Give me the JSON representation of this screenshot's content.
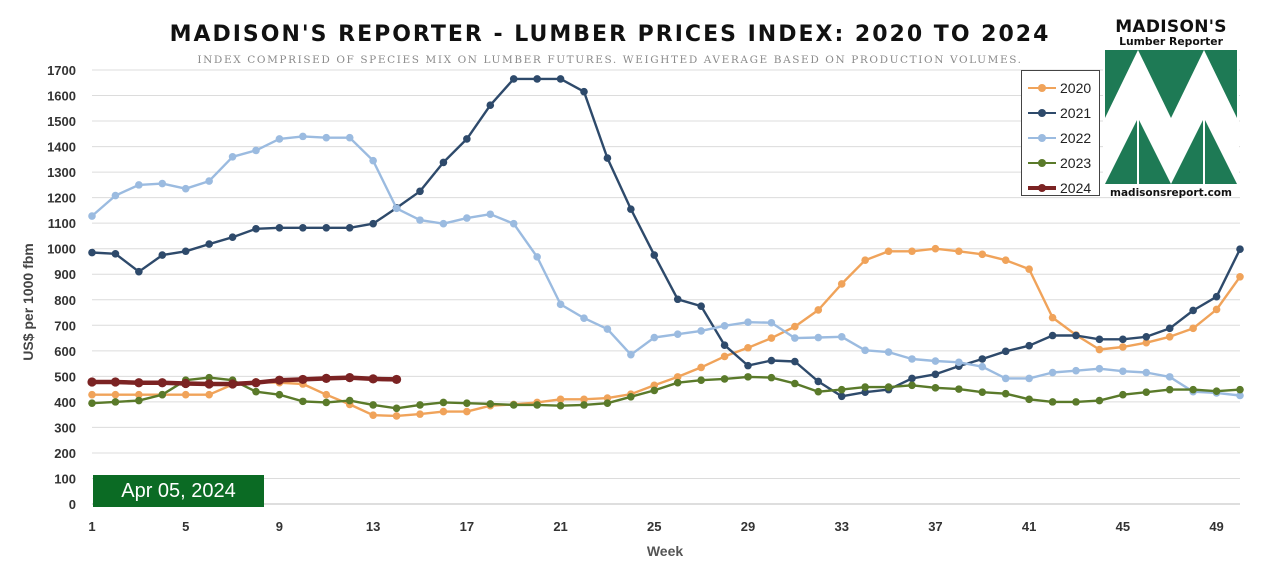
{
  "title": "MADISON'S REPORTER - LUMBER PRICES INDEX: 2020 TO 2024",
  "subtitle": "INDEX COMPRISED OF SPECIES MIX ON LUMBER FUTURES. WEIGHTED AVERAGE BASED ON PRODUCTION VOLUMES.",
  "date_badge": "Apr 05, 2024",
  "logo": {
    "name": "MADISON'S",
    "tagline": "Lumber Reporter",
    "url": "madisonsreport.com",
    "color": "#1e7a55"
  },
  "chart_data": {
    "type": "line",
    "title": "MADISON'S REPORTER - LUMBER PRICES INDEX: 2020 TO 2024",
    "subtitle": "INDEX COMPRISED OF SPECIES MIX ON LUMBER FUTURES. WEIGHTED AVERAGE BASED ON PRODUCTION VOLUMES.",
    "xlabel": "Week",
    "ylabel": "US$ per 1000 fbm",
    "xlim": [
      1,
      50
    ],
    "ylim": [
      0,
      1700
    ],
    "x_ticks": [
      1,
      5,
      9,
      13,
      17,
      21,
      25,
      29,
      33,
      37,
      41,
      45,
      49
    ],
    "y_ticks": [
      0,
      100,
      200,
      300,
      400,
      500,
      600,
      700,
      800,
      900,
      1000,
      1100,
      1200,
      1300,
      1400,
      1500,
      1600,
      1700
    ],
    "grid": "horizontal",
    "legend": "top-right",
    "series": [
      {
        "name": "2020",
        "color": "#f0a35a",
        "values": [
          428,
          428,
          428,
          428,
          428,
          428,
          468,
          478,
          475,
          470,
          428,
          390,
          348,
          345,
          352,
          362,
          362,
          385,
          390,
          398,
          410,
          410,
          415,
          430,
          465,
          498,
          535,
          578,
          612,
          650,
          695,
          760,
          862,
          955,
          990,
          990,
          1000,
          990,
          978,
          955,
          920,
          730,
          662,
          605,
          615,
          632,
          655,
          688,
          762,
          890
        ]
      },
      {
        "name": "2021",
        "color": "#2e4a6b",
        "values": [
          985,
          980,
          910,
          975,
          990,
          1018,
          1045,
          1078,
          1082,
          1082,
          1082,
          1082,
          1098,
          1160,
          1225,
          1338,
          1430,
          1562,
          1665,
          1665,
          1665,
          1615,
          1355,
          1155,
          975,
          802,
          775,
          622,
          542,
          562,
          558,
          480,
          422,
          438,
          448,
          492,
          508,
          540,
          568,
          598,
          620,
          660,
          660,
          645,
          645,
          655,
          688,
          758,
          812,
          998
        ]
      },
      {
        "name": "2022",
        "color": "#9bbbe0",
        "values": [
          1128,
          1208,
          1250,
          1255,
          1235,
          1265,
          1360,
          1385,
          1430,
          1440,
          1435,
          1435,
          1345,
          1158,
          1112,
          1098,
          1120,
          1135,
          1098,
          968,
          782,
          728,
          685,
          585,
          652,
          665,
          678,
          698,
          712,
          710,
          650,
          652,
          655,
          602,
          595,
          568,
          560,
          555,
          538,
          492,
          492,
          515,
          522,
          530,
          520,
          515,
          498,
          440,
          435,
          425
        ]
      },
      {
        "name": "2023",
        "color": "#5a7a2a",
        "values": [
          395,
          400,
          405,
          428,
          485,
          495,
          485,
          440,
          428,
          402,
          398,
          405,
          388,
          375,
          388,
          398,
          395,
          392,
          388,
          388,
          385,
          388,
          395,
          420,
          445,
          475,
          485,
          490,
          498,
          495,
          472,
          440,
          448,
          458,
          458,
          465,
          455,
          450,
          438,
          432,
          410,
          400,
          400,
          405,
          428,
          438,
          448,
          448,
          442,
          448
        ]
      },
      {
        "name": "2024",
        "color": "#7b2323",
        "values": [
          478,
          478,
          475,
          475,
          472,
          470,
          470,
          475,
          485,
          488,
          492,
          495,
          490,
          488
        ]
      }
    ]
  }
}
